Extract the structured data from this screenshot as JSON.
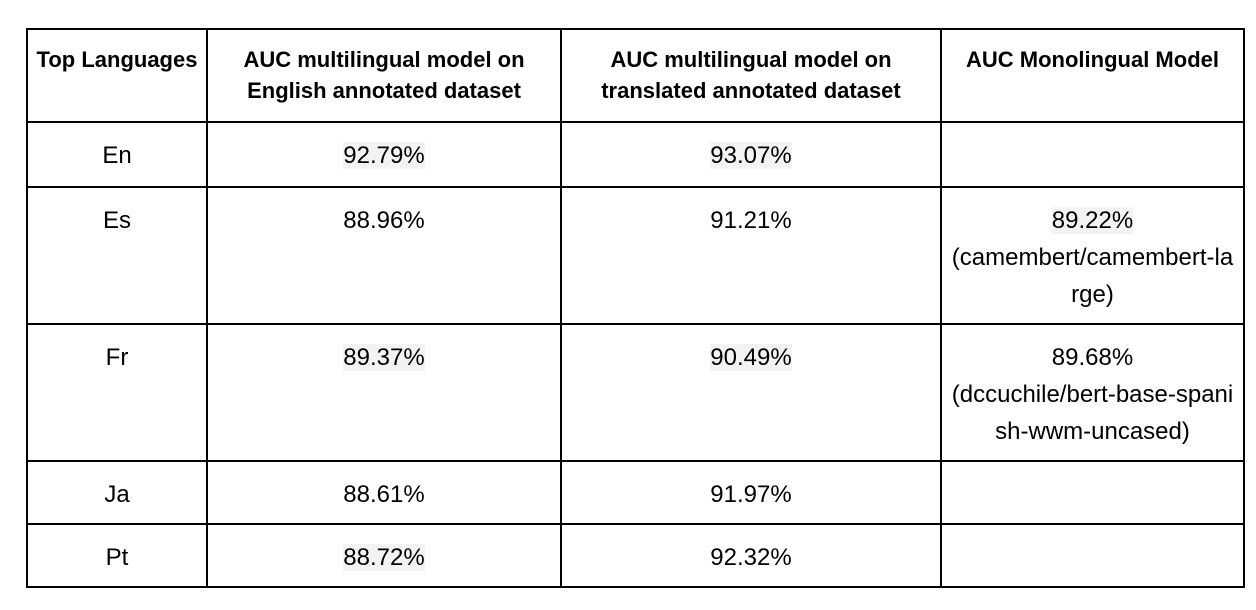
{
  "table": {
    "headers": [
      "Top Languages",
      "AUC multilingual model on English annotated dataset",
      "AUC multilingual model on translated annotated dataset",
      "AUC Monolingual Model"
    ],
    "rows": [
      {
        "language": "En",
        "english_auc": "92.79%",
        "translated_auc": "93.07%",
        "mono_auc": "",
        "mono_model": ""
      },
      {
        "language": "Es",
        "english_auc": "88.96%",
        "translated_auc": "91.21%",
        "mono_auc": "89.22%",
        "mono_model": "(camembert/camembert-large)"
      },
      {
        "language": "Fr",
        "english_auc": "89.37%",
        "translated_auc": "90.49%",
        "mono_auc": "89.68%",
        "mono_model": "(dccuchile/bert-base-spanish-wwm-uncased)"
      },
      {
        "language": "Ja",
        "english_auc": "88.61%",
        "translated_auc": "91.97%",
        "mono_auc": "",
        "mono_model": ""
      },
      {
        "language": "Pt",
        "english_auc": "88.72%",
        "translated_auc": "92.32%",
        "mono_auc": "",
        "mono_model": ""
      }
    ]
  }
}
